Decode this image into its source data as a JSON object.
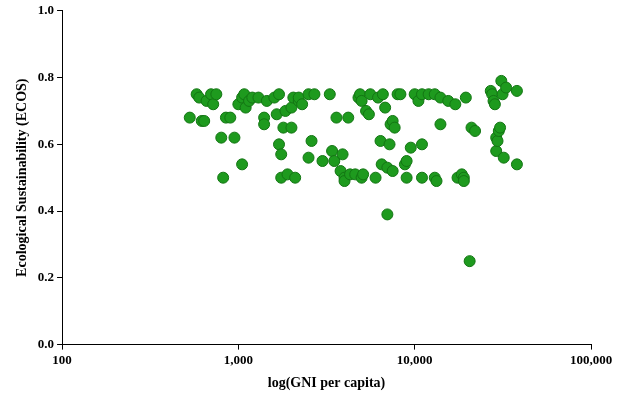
{
  "chart_data": {
    "type": "scatter",
    "x_label": "log(GNI per capita)",
    "y_label": "Ecological Sustainability (ECOS)",
    "log": "x",
    "grid": false,
    "marker": "circle",
    "color": "#1e9a1e",
    "xlim": [
      100,
      100000
    ],
    "xticks": [
      100,
      {
        "value": 1000,
        "label": "1,000"
      },
      {
        "value": 10000,
        "label": "10,000"
      },
      {
        "value": 100000,
        "label": "100,000"
      }
    ],
    "ylim": [
      0,
      1
    ],
    "yticks": [
      {
        "value": 0,
        "label": "0.0"
      },
      0.2,
      0.4,
      0.6,
      0.8,
      {
        "value": 1,
        "label": "1.0"
      }
    ],
    "x": [
      530,
      580,
      600,
      620,
      640,
      660,
      700,
      720,
      750,
      800,
      820,
      850,
      900,
      950,
      1000,
      1050,
      1050,
      1080,
      1100,
      1150,
      1200,
      1300,
      1400,
      1400,
      1450,
      1600,
      1650,
      1700,
      1700,
      1750,
      1750,
      1800,
      1850,
      1900,
      2000,
      2000,
      2050,
      2100,
      2200,
      2200,
      2300,
      2500,
      2500,
      2600,
      2700,
      3000,
      3300,
      3400,
      3500,
      3600,
      3800,
      3900,
      4000,
      4000,
      4200,
      4300,
      4600,
      4800,
      4900,
      5000,
      5000,
      5100,
      5300,
      5500,
      5600,
      6000,
      6200,
      6400,
      6500,
      6600,
      6800,
      7000,
      7000,
      7200,
      7300,
      7500,
      7500,
      7700,
      8000,
      8300,
      8800,
      9000,
      9000,
      9500,
      10000,
      10500,
      11000,
      11000,
      11000,
      12000,
      13000,
      13000,
      13300,
      14000,
      14000,
      15500,
      17000,
      17500,
      18500,
      19000,
      19000,
      19500,
      20500,
      21000,
      22000,
      27000,
      27500,
      28000,
      28500,
      29000,
      29000,
      29500,
      30000,
      30500,
      31000,
      31500,
      32000,
      33000,
      38000,
      38000
    ],
    "values": [
      0.68,
      0.75,
      0.74,
      0.67,
      0.67,
      0.73,
      0.75,
      0.72,
      0.75,
      0.62,
      0.5,
      0.68,
      0.68,
      0.62,
      0.72,
      0.54,
      0.74,
      0.75,
      0.71,
      0.73,
      0.74,
      0.74,
      0.68,
      0.66,
      0.73,
      0.74,
      0.69,
      0.6,
      0.75,
      0.57,
      0.5,
      0.65,
      0.7,
      0.51,
      0.71,
      0.65,
      0.74,
      0.5,
      0.73,
      0.74,
      0.72,
      0.75,
      0.56,
      0.61,
      0.75,
      0.55,
      0.75,
      0.58,
      0.55,
      0.68,
      0.52,
      0.57,
      0.5,
      0.49,
      0.68,
      0.51,
      0.51,
      0.74,
      0.75,
      0.5,
      0.73,
      0.51,
      0.7,
      0.69,
      0.75,
      0.5,
      0.74,
      0.61,
      0.54,
      0.75,
      0.71,
      0.53,
      0.39,
      0.6,
      0.66,
      0.67,
      0.52,
      0.65,
      0.75,
      0.75,
      0.54,
      0.5,
      0.55,
      0.59,
      0.75,
      0.73,
      0.75,
      0.5,
      0.6,
      0.75,
      0.75,
      0.5,
      0.49,
      0.66,
      0.74,
      0.73,
      0.72,
      0.5,
      0.51,
      0.5,
      0.49,
      0.74,
      0.25,
      0.65,
      0.64,
      0.76,
      0.75,
      0.73,
      0.72,
      0.62,
      0.58,
      0.61,
      0.64,
      0.65,
      0.79,
      0.75,
      0.56,
      0.77,
      0.76,
      0.54
    ]
  }
}
